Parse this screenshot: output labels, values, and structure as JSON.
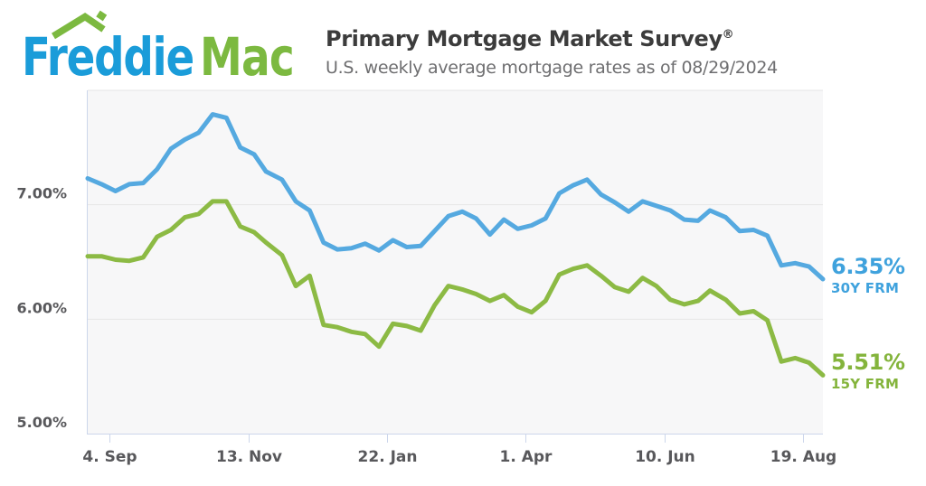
{
  "header": {
    "logo_word1": "Freddie",
    "logo_word2": "Mac",
    "title": "Primary Mortgage Market Survey",
    "title_reg": "®",
    "subtitle": "U.S. weekly average mortgage rates as of 08/29/2024"
  },
  "colors": {
    "page_bg": "#ffffff",
    "plot_bg": "#f7f7f8",
    "gridline": "#e6e6e6",
    "axis_line": "#ccd6eb",
    "axis_label_text": "#58585b",
    "title_text": "#3c3c3c",
    "subtitle_text": "#6e6e70",
    "logo_blue": "#1a9cd9",
    "logo_green": "#7cb940",
    "line_30y": "#55a9e0",
    "label_30y": "#3fa2dd",
    "line_15y": "#8cba44",
    "label_15y": "#84b43c"
  },
  "chart_data": {
    "type": "line",
    "title": "Primary Mortgage Market Survey",
    "subtitle": "U.S. weekly average mortgage rates as of 08/29/2024",
    "xlabel": "",
    "ylabel": "",
    "grid": "horizontal-only",
    "legend_position": "end-of-line right annotations",
    "x_start": "2023-08-24",
    "x_end": "2024-08-29",
    "ylim": [
      5.0,
      8.0
    ],
    "yticks": [
      {
        "value": 5,
        "label": "5.00%"
      },
      {
        "value": 6,
        "label": "6.00%"
      },
      {
        "value": 7,
        "label": "7.00%"
      }
    ],
    "ygrid": [
      6,
      7,
      8
    ],
    "xticks": [
      {
        "date": "2023-09-04",
        "label": "4. Sep"
      },
      {
        "date": "2023-11-13",
        "label": "13. Nov"
      },
      {
        "date": "2024-01-22",
        "label": "22. Jan"
      },
      {
        "date": "2024-04-01",
        "label": "1. Apr"
      },
      {
        "date": "2024-06-10",
        "label": "10. Jun"
      },
      {
        "date": "2024-08-19",
        "label": "19. Aug"
      }
    ],
    "dates": [
      "2023-08-24",
      "2023-08-31",
      "2023-09-07",
      "2023-09-14",
      "2023-09-21",
      "2023-09-28",
      "2023-10-05",
      "2023-10-12",
      "2023-10-19",
      "2023-10-26",
      "2023-11-02",
      "2023-11-09",
      "2023-11-16",
      "2023-11-22",
      "2023-11-30",
      "2023-12-07",
      "2023-12-14",
      "2023-12-21",
      "2023-12-28",
      "2024-01-04",
      "2024-01-11",
      "2024-01-18",
      "2024-01-25",
      "2024-02-01",
      "2024-02-08",
      "2024-02-15",
      "2024-02-22",
      "2024-02-29",
      "2024-03-07",
      "2024-03-14",
      "2024-03-21",
      "2024-03-28",
      "2024-04-04",
      "2024-04-11",
      "2024-04-18",
      "2024-04-25",
      "2024-05-02",
      "2024-05-09",
      "2024-05-16",
      "2024-05-23",
      "2024-05-30",
      "2024-06-06",
      "2024-06-13",
      "2024-06-20",
      "2024-06-27",
      "2024-07-03",
      "2024-07-11",
      "2024-07-18",
      "2024-07-25",
      "2024-08-01",
      "2024-08-08",
      "2024-08-15",
      "2024-08-22",
      "2024-08-29"
    ],
    "series": [
      {
        "name": "30Y FRM",
        "end_label": "6.35%",
        "color": "#55a9e0",
        "label_color": "#3fa2dd",
        "values": [
          7.23,
          7.18,
          7.12,
          7.18,
          7.19,
          7.31,
          7.49,
          7.57,
          7.63,
          7.79,
          7.76,
          7.5,
          7.44,
          7.29,
          7.22,
          7.03,
          6.95,
          6.67,
          6.61,
          6.62,
          6.66,
          6.6,
          6.69,
          6.63,
          6.64,
          6.77,
          6.9,
          6.94,
          6.88,
          6.74,
          6.87,
          6.79,
          6.82,
          6.88,
          7.1,
          7.17,
          7.22,
          7.09,
          7.02,
          6.94,
          7.03,
          6.99,
          6.95,
          6.87,
          6.86,
          6.95,
          6.89,
          6.77,
          6.78,
          6.73,
          6.47,
          6.49,
          6.46,
          6.35
        ]
      },
      {
        "name": "15Y FRM",
        "end_label": "5.51%",
        "color": "#8cba44",
        "label_color": "#84b43c",
        "values": [
          6.55,
          6.55,
          6.52,
          6.51,
          6.54,
          6.72,
          6.78,
          6.89,
          6.92,
          7.03,
          7.03,
          6.81,
          6.76,
          6.67,
          6.56,
          6.29,
          6.38,
          5.95,
          5.93,
          5.89,
          5.87,
          5.76,
          5.96,
          5.94,
          5.9,
          6.12,
          6.29,
          6.26,
          6.22,
          6.16,
          6.21,
          6.11,
          6.06,
          6.16,
          6.39,
          6.44,
          6.47,
          6.38,
          6.28,
          6.24,
          6.36,
          6.29,
          6.17,
          6.13,
          6.16,
          6.25,
          6.17,
          6.05,
          6.07,
          5.99,
          5.63,
          5.66,
          5.62,
          5.51
        ]
      }
    ]
  }
}
